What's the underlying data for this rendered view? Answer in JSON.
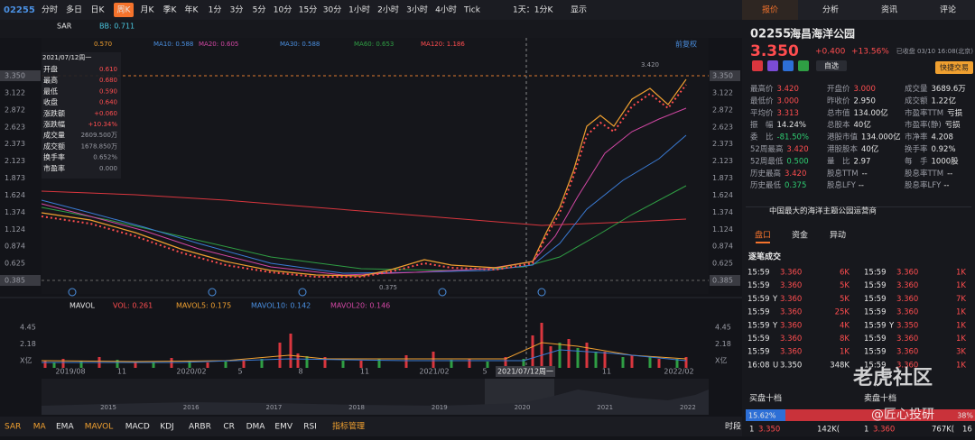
{
  "toolbar": {
    "symbol": "02255",
    "periods": [
      "分时",
      "多日",
      "日K",
      "周K",
      "月K",
      "季K",
      "年K",
      "1分",
      "3分",
      "5分",
      "10分",
      "15分",
      "30分",
      "1小时",
      "2小时",
      "3小时",
      "4小时",
      "Tick"
    ],
    "active": 3,
    "interval": "1天：1分K",
    "display": "显示"
  },
  "indicator_bar": {
    "main": "SAR",
    "bb": "BB: 0.711",
    "adjust": "前复权",
    "ma": [
      "0.570",
      "MA10: 0.588",
      "MA20: 0.605",
      "MA30: 0.588",
      "MA60: 0.653",
      "MA120: 1.186"
    ]
  },
  "price_axis": [
    "3.350",
    "3.122",
    "2.872",
    "2.623",
    "2.373",
    "2.123",
    "1.873",
    "1.624",
    "1.374",
    "1.124",
    "0.874",
    "0.625",
    "0.385"
  ],
  "high_label": "3.420",
  "low_label": "0.375",
  "tooltip": {
    "date": "2021/07/12周一",
    "rows": [
      [
        "开盘",
        "0.610"
      ],
      [
        "最高",
        "0.680"
      ],
      [
        "最低",
        "0.590"
      ],
      [
        "收盘",
        "0.640"
      ],
      [
        "涨跌额",
        "+0.060"
      ],
      [
        "涨跌幅",
        "+10.34%"
      ],
      [
        "成交量",
        "2609.500万"
      ],
      [
        "成交额",
        "1678.850万"
      ],
      [
        "换手率",
        "0.652%"
      ],
      [
        "市盈率",
        "0.000"
      ]
    ]
  },
  "volume": {
    "name": "MAVOL",
    "labels": [
      "VOL: 0.261",
      "MAVOL5: 0.175",
      "MAVOL10: 0.142",
      "MAVOL20: 0.146"
    ],
    "axis": [
      "4.45",
      "2.18",
      "X亿"
    ]
  },
  "x_axis": [
    "2019/08",
    "11",
    "2020/02",
    "5",
    "8",
    "11",
    "2021/02",
    "5",
    "11",
    "2022/02"
  ],
  "cursor_date": "2021/07/12周一",
  "timeline": [
    "2015",
    "2016",
    "2017",
    "2018",
    "2019",
    "2020",
    "2021",
    "2022"
  ],
  "indicator_tabs": [
    "SAR",
    "MA",
    "EMA",
    "MAVOL",
    "MACD",
    "KDJ",
    "ARBR",
    "CR",
    "DMA",
    "EMV",
    "RSI",
    "指标管理"
  ],
  "active_tabs": [
    0,
    1,
    3,
    11
  ],
  "period_tab": "时段",
  "panel": {
    "tabs": [
      "报价",
      "分析",
      "资讯",
      "评论"
    ],
    "symbol": "02255",
    "name": "海昌海洋公园",
    "price": "3.350",
    "change": "+0.400",
    "change_pct": "+13.56%",
    "status": "已收盘 03/10 16:08(北京)",
    "watch": "自选",
    "quick_trade": "快捷交易",
    "quote": [
      [
        [
          "最高价",
          "3.420",
          "#ff4d4f"
        ],
        [
          "开盘价",
          "3.000",
          "#ff4d4f"
        ],
        [
          "成交量",
          "3689.6万",
          "#e6e6e6"
        ]
      ],
      [
        [
          "最低价",
          "3.000",
          "#ff4d4f"
        ],
        [
          "昨收价",
          "2.950",
          "#e6e6e6"
        ],
        [
          "成交额",
          "1.22亿",
          "#e6e6e6"
        ]
      ],
      [
        [
          "平均价",
          "3.313",
          "#ff4d4f"
        ],
        [
          "总市值",
          "134.00亿",
          "#e6e6e6"
        ],
        [
          "市盈率TTM",
          "亏损",
          "#e6e6e6"
        ]
      ],
      [
        [
          "振　幅",
          "14.24%",
          "#e6e6e6"
        ],
        [
          "总股本",
          "40亿",
          "#e6e6e6"
        ],
        [
          "市盈率(静)",
          "亏损",
          "#e6e6e6"
        ]
      ],
      [
        [
          "委　比",
          "-81.50%",
          "#2ecc71"
        ],
        [
          "港股市值",
          "134.000亿",
          "#e6e6e6"
        ],
        [
          "市净率",
          "4.208",
          "#e6e6e6"
        ]
      ],
      [
        [
          "52周最高",
          "3.420",
          "#ff4d4f"
        ],
        [
          "港股股本",
          "40亿",
          "#e6e6e6"
        ],
        [
          "换手率",
          "0.92%",
          "#e6e6e6"
        ]
      ],
      [
        [
          "52周最低",
          "0.500",
          "#2ecc71"
        ],
        [
          "量　比",
          "2.97",
          "#e6e6e6"
        ],
        [
          "每　手",
          "1000股",
          "#e6e6e6"
        ]
      ],
      [
        [
          "历史最高",
          "3.420",
          "#ff4d4f"
        ],
        [
          "股息TTM",
          "--",
          "#e6e6e6"
        ],
        [
          "股息率TTM",
          "--",
          "#e6e6e6"
        ]
      ],
      [
        [
          "历史最低",
          "0.375",
          "#2ecc71"
        ],
        [
          "股息LFY",
          "--",
          "#e6e6e6"
        ],
        [
          "股息率LFY",
          "--",
          "#e6e6e6"
        ]
      ]
    ],
    "description": "中国最大的海洋主题公园运营商",
    "sub_tabs": [
      "盘口",
      "资金",
      "异动"
    ],
    "trades_title": "逐笔成交",
    "trades": [
      [
        {
          "time": "15:59",
          "price": "3.360",
          "vol": "6K",
          "color": "#ff4d4f"
        },
        {
          "time": "15:59",
          "price": "3.360",
          "vol": "1K",
          "color": "#ff4d4f"
        }
      ],
      [
        {
          "time": "15:59",
          "price": "3.360",
          "vol": "5K",
          "color": "#ff4d4f"
        },
        {
          "time": "15:59",
          "price": "3.360",
          "vol": "1K",
          "color": "#ff4d4f"
        }
      ],
      [
        {
          "time": "15:59",
          "flag": "Y",
          "price": "3.360",
          "vol": "5K",
          "color": "#ff4d4f"
        },
        {
          "time": "15:59",
          "price": "3.360",
          "vol": "7K",
          "color": "#ff4d4f"
        }
      ],
      [
        {
          "time": "15:59",
          "price": "3.360",
          "vol": "25K",
          "color": "#ff4d4f"
        },
        {
          "time": "15:59",
          "price": "3.360",
          "vol": "1K",
          "color": "#ff4d4f"
        }
      ],
      [
        {
          "time": "15:59",
          "flag": "Y",
          "price": "3.360",
          "vol": "4K",
          "color": "#ff4d4f"
        },
        {
          "time": "15:59",
          "flag": "Y",
          "price": "3.350",
          "vol": "1K",
          "color": "#ff4d4f"
        }
      ],
      [
        {
          "time": "15:59",
          "price": "3.360",
          "vol": "8K",
          "color": "#ff4d4f"
        },
        {
          "time": "15:59",
          "price": "3.360",
          "vol": "1K",
          "color": "#ff4d4f"
        }
      ],
      [
        {
          "time": "15:59",
          "price": "3.360",
          "vol": "1K",
          "color": "#ff4d4f"
        },
        {
          "time": "15:59",
          "price": "3.360",
          "vol": "3K",
          "color": "#ff4d4f"
        }
      ],
      [
        {
          "time": "16:08",
          "flag": "U",
          "price": "3.350",
          "vol": "348K",
          "color": "#e6e6e6"
        },
        {
          "time": "15:59",
          "price": "3.360",
          "vol": "1K",
          "color": "#ff4d4f"
        }
      ]
    ],
    "book": {
      "bid_title": "买盘十档",
      "ask_title": "卖盘十档",
      "bid_pct": "15.62%",
      "ask_pct": "38%",
      "bid": [
        "1",
        "3.350",
        "142K("
      ],
      "ask": [
        "1",
        "3.360",
        "767K(",
        "16"
      ]
    },
    "watermark": "老虎社区",
    "author": "@匠心投研"
  }
}
